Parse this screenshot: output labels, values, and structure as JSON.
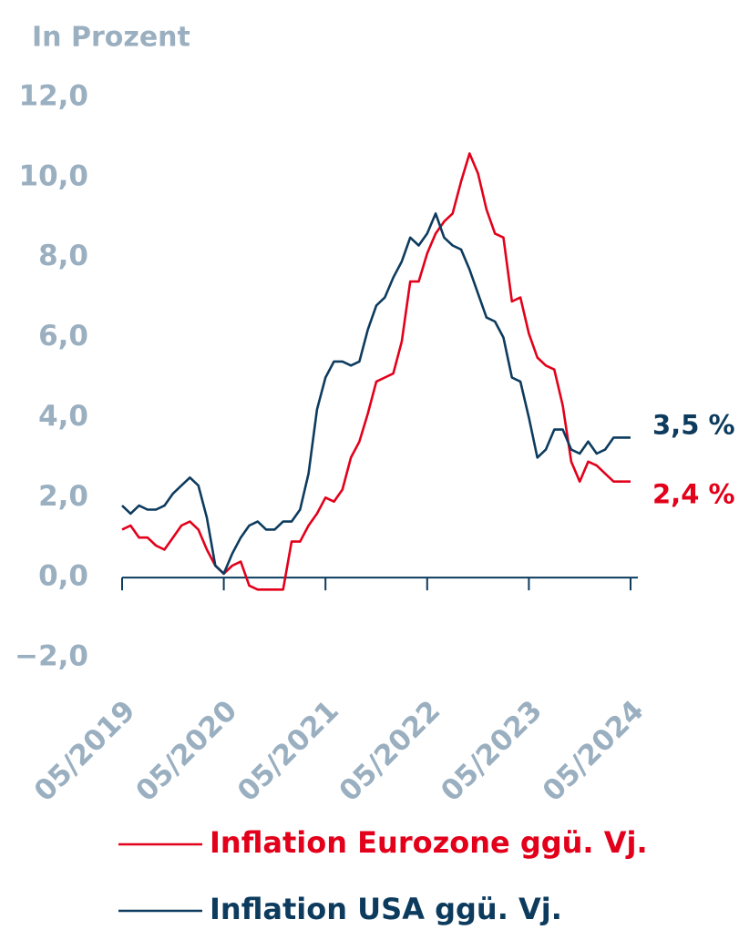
{
  "chart_data": {
    "type": "line",
    "title": "In Prozent",
    "categories": [
      "05/2019",
      null,
      null,
      null,
      null,
      null,
      null,
      null,
      null,
      null,
      null,
      null,
      "05/2020",
      null,
      null,
      null,
      null,
      null,
      null,
      null,
      null,
      null,
      null,
      null,
      "05/2021",
      null,
      null,
      null,
      null,
      null,
      null,
      null,
      null,
      null,
      null,
      null,
      "05/2022",
      null,
      null,
      null,
      null,
      null,
      null,
      null,
      null,
      null,
      null,
      null,
      "05/2023",
      null,
      null,
      null,
      null,
      null,
      null,
      null,
      null,
      null,
      null,
      null,
      "05/2024"
    ],
    "series": [
      {
        "name": "Inflation Eurozone ggü. Vj.",
        "color": "#e2001a",
        "end_label": "2,4 %",
        "values": [
          1.2,
          1.3,
          1.0,
          1.0,
          0.8,
          0.7,
          1.0,
          1.3,
          1.4,
          1.2,
          0.7,
          0.3,
          0.1,
          0.3,
          0.4,
          -0.2,
          -0.3,
          -0.3,
          -0.3,
          -0.3,
          0.9,
          0.9,
          1.3,
          1.6,
          2.0,
          1.9,
          2.2,
          3.0,
          3.4,
          4.1,
          4.9,
          5.0,
          5.1,
          5.9,
          7.4,
          7.4,
          8.1,
          8.6,
          8.9,
          9.1,
          9.9,
          10.6,
          10.1,
          9.2,
          8.6,
          8.5,
          6.9,
          7.0,
          6.1,
          5.5,
          5.3,
          5.2,
          4.3,
          2.9,
          2.4,
          2.9,
          2.8,
          2.6,
          2.4,
          2.4,
          2.4
        ]
      },
      {
        "name": "Inflation USA ggü. Vj.",
        "color": "#0d3b5e",
        "end_label": "3,5 %",
        "values": [
          1.8,
          1.6,
          1.8,
          1.7,
          1.7,
          1.8,
          2.1,
          2.3,
          2.5,
          2.3,
          1.5,
          0.3,
          0.1,
          0.6,
          1.0,
          1.3,
          1.4,
          1.2,
          1.2,
          1.4,
          1.4,
          1.7,
          2.6,
          4.2,
          5.0,
          5.4,
          5.4,
          5.3,
          5.4,
          6.2,
          6.8,
          7.0,
          7.5,
          7.9,
          8.5,
          8.3,
          8.6,
          9.1,
          8.5,
          8.3,
          8.2,
          7.7,
          7.1,
          6.5,
          6.4,
          6.0,
          5.0,
          4.9,
          4.0,
          3.0,
          3.2,
          3.7,
          3.7,
          3.2,
          3.1,
          3.4,
          3.1,
          3.2,
          3.5,
          3.5,
          3.5
        ]
      }
    ],
    "ylim": [
      -2,
      12
    ],
    "yticks": [
      {
        "value": -2,
        "label": "−2,0"
      },
      {
        "value": 0,
        "label": "0,0"
      },
      {
        "value": 2,
        "label": "2,0"
      },
      {
        "value": 4,
        "label": "4,0"
      },
      {
        "value": 6,
        "label": "6,0"
      },
      {
        "value": 8,
        "label": "8,0"
      },
      {
        "value": 10,
        "label": "10,0"
      },
      {
        "value": 12,
        "label": "12,0"
      }
    ]
  }
}
